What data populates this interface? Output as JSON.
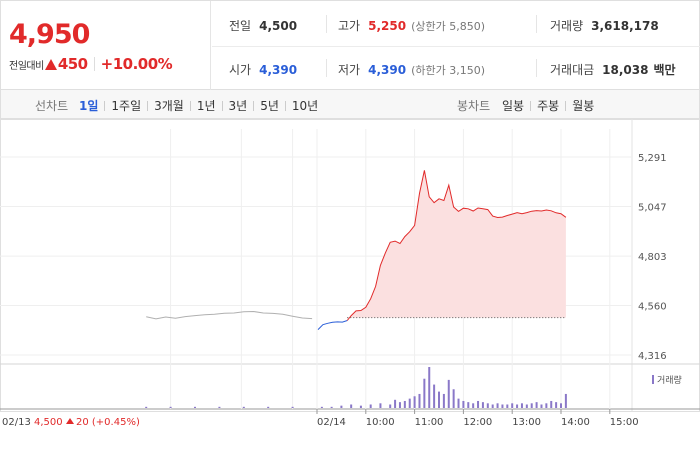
{
  "summary": {
    "price": "4,950",
    "change_label": "전일대비",
    "change_amount": "450",
    "change_percent": "+10.00%",
    "prev_close": {
      "label": "전일",
      "value": "4,500"
    },
    "open": {
      "label": "시가",
      "value": "4,390"
    },
    "high": {
      "label": "고가",
      "value": "5,250",
      "sub": "(상한가 5,850)"
    },
    "low": {
      "label": "저가",
      "value": "4,390",
      "sub": "(하한가 3,150)"
    },
    "volume": {
      "label": "거래량",
      "value": "3,618,178"
    },
    "amount": {
      "label": "거래대금",
      "value": "18,038",
      "unit": "백만"
    }
  },
  "periods": {
    "line_title": "선차트",
    "line_items": [
      "1일",
      "1주일",
      "3개월",
      "1년",
      "3년",
      "5년",
      "10년"
    ],
    "active": "1일",
    "candle_title": "봉차트",
    "candle_items": [
      "일봉",
      "주봉",
      "월봉"
    ]
  },
  "chart_data": {
    "type": "line",
    "ylim": [
      4316,
      5291
    ],
    "y_ticks": [
      "5,291",
      "5,047",
      "4,803",
      "4,560",
      "4,316"
    ],
    "reference_price": 4500,
    "x_labels": [
      "02/14",
      "10:00",
      "11:00",
      "12:00",
      "13:00",
      "14:00",
      "15:00"
    ],
    "prev_day_label": "02/13",
    "prev_day_summary": "4,500",
    "prev_day_change": "20 (+0.45%)",
    "volume_legend": "거래량",
    "colors": {
      "up": "#e12a2a",
      "down": "#2a5ed8",
      "prev": "#b0b0b0",
      "volume": "#8a78c8",
      "fill": "#fbe0e0"
    },
    "prev_day_series": [
      [
        -3.5,
        4504
      ],
      [
        -3.3,
        4494
      ],
      [
        -3.1,
        4503
      ],
      [
        -2.9,
        4497
      ],
      [
        -2.7,
        4505
      ],
      [
        -2.5,
        4510
      ],
      [
        -2.3,
        4514
      ],
      [
        -2.1,
        4517
      ],
      [
        -1.9,
        4522
      ],
      [
        -1.7,
        4523
      ],
      [
        -1.5,
        4529
      ],
      [
        -1.3,
        4530
      ],
      [
        -1.1,
        4523
      ],
      [
        -0.9,
        4521
      ],
      [
        -0.7,
        4517
      ],
      [
        -0.5,
        4507
      ],
      [
        -0.3,
        4498
      ],
      [
        -0.1,
        4495
      ]
    ],
    "today_down_series": [
      [
        0.02,
        4441
      ],
      [
        0.12,
        4465
      ],
      [
        0.22,
        4472
      ],
      [
        0.32,
        4477
      ],
      [
        0.42,
        4479
      ],
      [
        0.52,
        4478
      ],
      [
        0.62,
        4486
      ]
    ],
    "today_up_series": [
      [
        0.62,
        4486
      ],
      [
        0.7,
        4510
      ],
      [
        0.8,
        4533
      ],
      [
        0.9,
        4535
      ],
      [
        1.0,
        4551
      ],
      [
        1.1,
        4593
      ],
      [
        1.2,
        4654
      ],
      [
        1.3,
        4757
      ],
      [
        1.4,
        4818
      ],
      [
        1.5,
        4871
      ],
      [
        1.6,
        4877
      ],
      [
        1.7,
        4865
      ],
      [
        1.8,
        4899
      ],
      [
        1.9,
        4923
      ],
      [
        2.0,
        4954
      ],
      [
        2.1,
        5112
      ],
      [
        2.2,
        5225
      ],
      [
        2.3,
        5095
      ],
      [
        2.4,
        5066
      ],
      [
        2.5,
        5085
      ],
      [
        2.6,
        5077
      ],
      [
        2.7,
        5152
      ],
      [
        2.8,
        5045
      ],
      [
        2.9,
        5023
      ],
      [
        3.0,
        5039
      ],
      [
        3.1,
        5036
      ],
      [
        3.2,
        5025
      ],
      [
        3.3,
        5040
      ],
      [
        3.4,
        5036
      ],
      [
        3.5,
        5032
      ],
      [
        3.6,
        5000
      ],
      [
        3.7,
        4993
      ],
      [
        3.8,
        4995
      ],
      [
        3.9,
        5003
      ],
      [
        4.0,
        5010
      ],
      [
        4.1,
        5017
      ],
      [
        4.2,
        5012
      ],
      [
        4.3,
        5017
      ],
      [
        4.4,
        5024
      ],
      [
        4.5,
        5027
      ],
      [
        4.6,
        5025
      ],
      [
        4.7,
        5030
      ],
      [
        4.8,
        5026
      ],
      [
        4.9,
        5016
      ],
      [
        5.0,
        5012
      ],
      [
        5.1,
        4994
      ]
    ],
    "volume_series": [
      [
        -3.5,
        1
      ],
      [
        -3.0,
        1
      ],
      [
        -2.5,
        1
      ],
      [
        -2.0,
        1
      ],
      [
        -1.5,
        1
      ],
      [
        -1.0,
        1
      ],
      [
        -0.5,
        1
      ],
      [
        0.1,
        1
      ],
      [
        0.3,
        1
      ],
      [
        0.5,
        2
      ],
      [
        0.7,
        3
      ],
      [
        0.9,
        2
      ],
      [
        1.1,
        3
      ],
      [
        1.3,
        4
      ],
      [
        1.5,
        3
      ],
      [
        1.6,
        7
      ],
      [
        1.7,
        5
      ],
      [
        1.8,
        6
      ],
      [
        1.9,
        8
      ],
      [
        2.0,
        10
      ],
      [
        2.1,
        12
      ],
      [
        2.2,
        25
      ],
      [
        2.3,
        35
      ],
      [
        2.4,
        20
      ],
      [
        2.5,
        14
      ],
      [
        2.6,
        12
      ],
      [
        2.7,
        24
      ],
      [
        2.8,
        16
      ],
      [
        2.9,
        8
      ],
      [
        3.0,
        6
      ],
      [
        3.1,
        5
      ],
      [
        3.2,
        4
      ],
      [
        3.3,
        6
      ],
      [
        3.4,
        5
      ],
      [
        3.5,
        4
      ],
      [
        3.6,
        3
      ],
      [
        3.7,
        4
      ],
      [
        3.8,
        3
      ],
      [
        3.9,
        3
      ],
      [
        4.0,
        4
      ],
      [
        4.1,
        3
      ],
      [
        4.2,
        4
      ],
      [
        4.3,
        3
      ],
      [
        4.4,
        4
      ],
      [
        4.5,
        5
      ],
      [
        4.6,
        3
      ],
      [
        4.7,
        4
      ],
      [
        4.8,
        6
      ],
      [
        4.9,
        5
      ],
      [
        5.0,
        4
      ],
      [
        5.1,
        12
      ]
    ]
  }
}
